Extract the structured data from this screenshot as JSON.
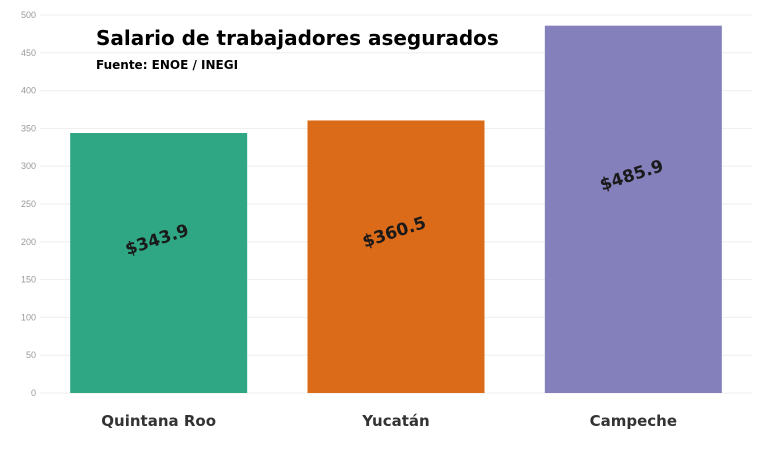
{
  "chart_data": {
    "type": "bar",
    "title": "Salario de trabajadores asegurados",
    "subtitle": "Fuente: ENOE / INEGI",
    "categories": [
      "Quintana Roo",
      "Yucatán",
      "Campeche"
    ],
    "values": [
      343.9,
      360.5,
      485.9
    ],
    "value_labels": [
      "$343.9",
      "$360.5",
      "$485.9"
    ],
    "colors": [
      "#30A784",
      "#DB6A19",
      "#8480BB"
    ],
    "ylim": [
      0,
      500
    ],
    "yticks": [
      0,
      50,
      100,
      150,
      200,
      250,
      300,
      350,
      400,
      450,
      500
    ],
    "grid": true,
    "xlabel": "",
    "ylabel": ""
  }
}
